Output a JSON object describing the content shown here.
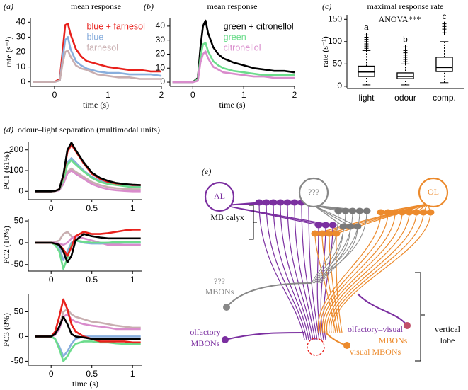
{
  "chart_data": [
    {
      "type": "line",
      "panel_label": "(a)",
      "title": "mean response",
      "xlabel": "time (s)",
      "ylabel": "rate (s⁻¹)",
      "x": [
        -0.4,
        -0.2,
        0,
        0.1,
        0.15,
        0.2,
        0.25,
        0.3,
        0.4,
        0.5,
        0.6,
        0.8,
        1.0,
        1.2,
        1.4,
        1.6,
        1.8,
        2.0
      ],
      "xlim": [
        -0.45,
        2.0
      ],
      "xticks": [
        0,
        1,
        2
      ],
      "ylim": [
        -3,
        43
      ],
      "yticks": [
        0,
        10,
        20,
        30,
        40
      ],
      "legend": "top-right",
      "series": [
        {
          "name": "blue + farnesol",
          "color": "#e8211c",
          "values": [
            0,
            0,
            0,
            2,
            20,
            38,
            39,
            32,
            22,
            17,
            14,
            12,
            10,
            9,
            8,
            8,
            7,
            7
          ]
        },
        {
          "name": "blue",
          "color": "#88aedd",
          "values": [
            0,
            0,
            0,
            1,
            15,
            28,
            30,
            22,
            14,
            11,
            9,
            7,
            6,
            6,
            5,
            5,
            5,
            4
          ]
        },
        {
          "name": "farnesol",
          "color": "#c8aeb0",
          "values": [
            0,
            0,
            0,
            1,
            12,
            20,
            21,
            17,
            11,
            9,
            8,
            5,
            4,
            3,
            3,
            2,
            2,
            2
          ]
        }
      ]
    },
    {
      "type": "line",
      "panel_label": "(b)",
      "title": "mean response",
      "xlabel": "time (s)",
      "x": [
        -0.4,
        -0.2,
        0,
        0.1,
        0.15,
        0.2,
        0.25,
        0.3,
        0.4,
        0.5,
        0.6,
        0.8,
        1.0,
        1.2,
        1.4,
        1.6,
        1.8,
        2.0
      ],
      "xlim": [
        -0.45,
        2.0
      ],
      "xticks": [
        0,
        1,
        2
      ],
      "ylim": [
        -3,
        46
      ],
      "yticks": [
        0,
        10,
        20,
        30,
        40
      ],
      "legend": "top-right",
      "series": [
        {
          "name": "green + citronellol",
          "color": "#000000",
          "values": [
            0,
            0,
            0,
            3,
            25,
            40,
            44,
            35,
            25,
            20,
            17,
            14,
            12,
            10,
            9,
            8,
            8,
            7
          ]
        },
        {
          "name": "green",
          "color": "#6cdc8c",
          "values": [
            0,
            0,
            0,
            2,
            18,
            27,
            28,
            22,
            15,
            12,
            10,
            8,
            7,
            6,
            5,
            5,
            5,
            5
          ]
        },
        {
          "name": "citronellol",
          "color": "#d98ccc",
          "values": [
            0,
            0,
            0,
            1,
            14,
            20,
            22,
            17,
            11,
            9,
            7,
            6,
            5,
            4,
            4,
            3,
            3,
            3
          ]
        }
      ]
    },
    {
      "type": "box",
      "panel_label": "(c)",
      "title": "maximal response rate",
      "annotation": "ANOVA***",
      "ylabel": "rate (s⁻¹)",
      "categories": [
        "light",
        "odour",
        "comp."
      ],
      "group_labels": [
        "a",
        "b",
        "c"
      ],
      "ylim": [
        -5,
        160
      ],
      "yticks": [
        0,
        50,
        100,
        150
      ],
      "boxes": [
        {
          "min": 3,
          "q1": 22,
          "median": 32,
          "q3": 45,
          "max": 80,
          "outliers": [
            85,
            90,
            95,
            100,
            105,
            110,
            115
          ]
        },
        {
          "min": 3,
          "q1": 17,
          "median": 22,
          "q3": 30,
          "max": 50,
          "outliers": [
            55,
            60,
            65,
            70,
            75,
            80,
            88
          ]
        },
        {
          "min": 8,
          "q1": 33,
          "median": 42,
          "q3": 65,
          "max": 100,
          "outliers": [
            120,
            128,
            134,
            140
          ]
        }
      ]
    },
    {
      "type": "line",
      "panel_label": "(d)",
      "title": "odour–light separation (multimodal units)",
      "ylabel": "PC1 (61%)",
      "x": [
        -0.2,
        -0.1,
        0,
        0.05,
        0.1,
        0.15,
        0.2,
        0.25,
        0.3,
        0.4,
        0.5,
        0.6,
        0.7,
        0.8,
        0.9,
        1.0,
        1.1
      ],
      "xlim": [
        -0.28,
        1.12
      ],
      "xticks": [
        0,
        0.5,
        1
      ],
      "ylim": [
        -40,
        240
      ],
      "yticks": [
        0,
        100,
        200
      ],
      "series": [
        {
          "color": "#c8aeb0",
          "values": [
            0,
            0,
            0,
            1,
            5,
            40,
            95,
            110,
            95,
            70,
            45,
            30,
            20,
            15,
            12,
            10,
            10
          ]
        },
        {
          "color": "#d98ccc",
          "values": [
            0,
            0,
            0,
            1,
            5,
            35,
            85,
            100,
            85,
            60,
            35,
            20,
            10,
            5,
            2,
            0,
            0
          ]
        },
        {
          "color": "#88aedd",
          "values": [
            0,
            0,
            0,
            2,
            8,
            60,
            140,
            160,
            140,
            100,
            70,
            50,
            40,
            32,
            28,
            25,
            22
          ]
        },
        {
          "color": "#6cdc8c",
          "values": [
            0,
            0,
            0,
            2,
            8,
            55,
            130,
            150,
            130,
            95,
            65,
            45,
            35,
            30,
            25,
            20,
            20
          ]
        },
        {
          "color": "#e8211c",
          "values": [
            0,
            0,
            0,
            2,
            10,
            75,
            190,
            225,
            195,
            135,
            85,
            60,
            45,
            38,
            35,
            30,
            30
          ]
        },
        {
          "color": "#000000",
          "values": [
            0,
            0,
            0,
            2,
            10,
            80,
            200,
            235,
            200,
            140,
            90,
            65,
            50,
            40,
            35,
            32,
            30
          ]
        }
      ]
    },
    {
      "type": "line",
      "ylabel": "PC2 (10%)",
      "x": [
        -0.2,
        -0.1,
        0,
        0.05,
        0.1,
        0.15,
        0.2,
        0.25,
        0.3,
        0.4,
        0.5,
        0.6,
        0.7,
        0.8,
        0.9,
        1.0,
        1.1
      ],
      "xlim": [
        -0.28,
        1.12
      ],
      "xticks": [
        0,
        0.5,
        1
      ],
      "ylim": [
        -65,
        55
      ],
      "yticks": [
        -50,
        0,
        50
      ],
      "series": [
        {
          "color": "#c8aeb0",
          "values": [
            0,
            0,
            0,
            2,
            5,
            20,
            25,
            15,
            5,
            2,
            0,
            -2,
            -2,
            -3,
            -5,
            -5,
            -5
          ]
        },
        {
          "color": "#d98ccc",
          "values": [
            0,
            0,
            0,
            0,
            -2,
            -5,
            0,
            10,
            15,
            10,
            5,
            0,
            -5,
            -5,
            -5,
            -5,
            -5
          ]
        },
        {
          "color": "#88aedd",
          "values": [
            0,
            0,
            0,
            -2,
            -10,
            -40,
            -20,
            0,
            5,
            0,
            -2,
            -2,
            0,
            0,
            0,
            0,
            0
          ]
        },
        {
          "color": "#6cdc8c",
          "values": [
            0,
            0,
            0,
            -5,
            -20,
            -60,
            -35,
            -5,
            5,
            2,
            0,
            0,
            0,
            2,
            2,
            2,
            2
          ]
        },
        {
          "color": "#e8211c",
          "values": [
            0,
            0,
            0,
            -2,
            -5,
            -15,
            -30,
            -10,
            15,
            25,
            20,
            20,
            22,
            25,
            28,
            30,
            30
          ]
        },
        {
          "color": "#000000",
          "values": [
            0,
            0,
            0,
            -2,
            -5,
            -20,
            -45,
            -30,
            5,
            20,
            15,
            12,
            10,
            10,
            10,
            10,
            10
          ]
        }
      ]
    },
    {
      "type": "line",
      "ylabel": "PC3 (8%)",
      "xlabel": "time (s)",
      "x": [
        -0.2,
        -0.1,
        0,
        0.05,
        0.1,
        0.15,
        0.2,
        0.25,
        0.3,
        0.4,
        0.5,
        0.6,
        0.7,
        0.8,
        0.9,
        1.0,
        1.1
      ],
      "xlim": [
        -0.28,
        1.12
      ],
      "xticks": [
        0,
        0.5,
        1
      ],
      "ylim": [
        -58,
        85
      ],
      "yticks": [
        -50,
        0,
        50
      ],
      "series": [
        {
          "color": "#c8aeb0",
          "values": [
            0,
            0,
            0,
            5,
            20,
            50,
            55,
            45,
            40,
            35,
            30,
            28,
            25,
            22,
            20,
            18,
            18
          ]
        },
        {
          "color": "#d98ccc",
          "values": [
            0,
            0,
            0,
            3,
            15,
            40,
            45,
            35,
            30,
            25,
            22,
            20,
            18,
            15,
            15,
            15,
            15
          ]
        },
        {
          "color": "#88aedd",
          "values": [
            0,
            0,
            0,
            -5,
            -20,
            -40,
            -30,
            -15,
            -5,
            0,
            0,
            0,
            0,
            0,
            0,
            0,
            0
          ]
        },
        {
          "color": "#6cdc8c",
          "values": [
            0,
            0,
            0,
            -5,
            -25,
            -50,
            -40,
            -25,
            -15,
            -10,
            -10,
            -12,
            -12,
            -14,
            -15,
            -15,
            -15
          ]
        },
        {
          "color": "#e8211c",
          "values": [
            0,
            0,
            0,
            10,
            40,
            75,
            55,
            25,
            10,
            0,
            -5,
            -10,
            -10,
            -10,
            -10,
            -12,
            -12
          ]
        },
        {
          "color": "#000000",
          "values": [
            0,
            0,
            0,
            5,
            20,
            40,
            25,
            5,
            0,
            -2,
            -5,
            -5,
            -5,
            -5,
            -5,
            -5,
            -5
          ]
        }
      ]
    }
  ],
  "diagram": {
    "panel_label": "(e)",
    "al": "AL",
    "unknown": "???",
    "ol": "OL",
    "calyx": "MB calyx",
    "unknown_mbons": "???",
    "unknown_mbons_2": "MBONs",
    "olfactory": "olfactory",
    "olfactory_2": "MBONs",
    "olfactory_visual": "olfactory–visual",
    "olfactory_visual_2": "MBONs",
    "visual": "visual MBONs",
    "lobe": "vertical",
    "lobe_2": "lobe"
  }
}
